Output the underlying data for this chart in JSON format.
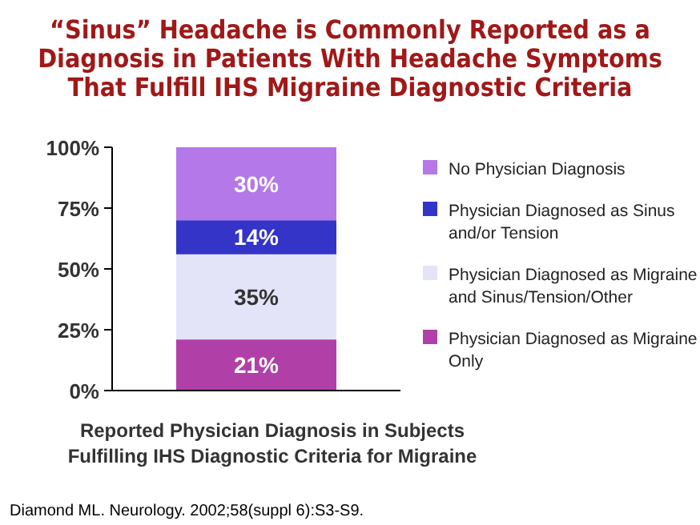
{
  "chart_data": {
    "type": "bar",
    "stacked": true,
    "title": "“Sinus” Headache is Commonly Reported as a Diagnosis in Patients With Headache Symptoms That Fulfill IHS Migraine Diagnostic Criteria",
    "xlabel": "Reported Physician Diagnosis in Subjects Fulfilling IHS Diagnostic Criteria for Migraine",
    "categories": [
      null
    ],
    "series": [
      {
        "name": "Physician Diagnosed as Migraine Only",
        "color": "#b040a8",
        "values": [
          21
        ],
        "value_labels": [
          "21%"
        ]
      },
      {
        "name": "Physician Diagnosed as Migraine and Sinus/Tension/Other",
        "color": "#e4e4f8",
        "values": [
          35
        ],
        "value_labels": [
          "35%"
        ]
      },
      {
        "name": "Physician Diagnosed as Sinus and/or Tension",
        "color": "#3434c8",
        "values": [
          14
        ],
        "value_labels": [
          "14%"
        ]
      },
      {
        "name": "No Physician Diagnosis",
        "color": "#b478e8",
        "values": [
          30
        ],
        "value_labels": [
          "30%"
        ]
      }
    ],
    "ylim": [
      0,
      100
    ],
    "yticks": [
      {
        "value": 0,
        "label": "0%"
      },
      {
        "value": 25,
        "label": "25%"
      },
      {
        "value": 50,
        "label": "50%"
      },
      {
        "value": 75,
        "label": "75%"
      },
      {
        "value": 100,
        "label": "100%"
      }
    ],
    "legend": "right",
    "annotations": [
      "Diamond ML. Neurology. 2002;58(suppl 6):S3-S9."
    ]
  }
}
